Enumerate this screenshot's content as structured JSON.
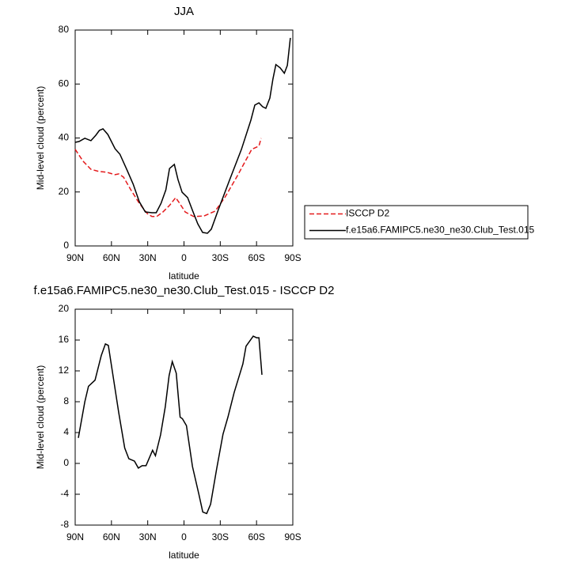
{
  "chart_data": [
    {
      "type": "line",
      "title": "JJA",
      "xlabel": "latitude",
      "ylabel": "Mid-level cloud (percent)",
      "xlim": [
        90,
        -90
      ],
      "ylim": [
        0,
        80
      ],
      "xticks": [
        {
          "value": 90,
          "label": "90N"
        },
        {
          "value": 60,
          "label": "60N"
        },
        {
          "value": 30,
          "label": "30N"
        },
        0,
        {
          "value": -30,
          "label": "30S"
        },
        {
          "value": -60,
          "label": "60S"
        },
        {
          "value": -90,
          "label": "90S"
        }
      ],
      "yticks": [
        0,
        20,
        40,
        60,
        80
      ],
      "legend": "right",
      "series": [
        {
          "name": "ISCCP D2",
          "color": "#e41a1c",
          "dash": true,
          "x": [
            90,
            83.5,
            77,
            70.5,
            64,
            57,
            54,
            50,
            44,
            37,
            30.4,
            26.5,
            22.6,
            17.4,
            12,
            6.9,
            3.6,
            -1,
            -8,
            -16.5,
            -25.7,
            -33.7,
            -44.2,
            -50.7,
            -56,
            -62,
            -63.8
          ],
          "values": [
            35.8,
            31.4,
            28.4,
            27.6,
            27.3,
            26.4,
            26.7,
            25.5,
            20.8,
            15.8,
            12,
            10.9,
            10.9,
            12.6,
            15,
            17.9,
            15.8,
            12.6,
            10.9,
            11.1,
            12.9,
            17.9,
            26,
            31.4,
            35.8,
            37,
            39.9
          ]
        },
        {
          "name": "f.e15a6.FAMIPC5.ne30_ne30.Club_Test.015",
          "color": "#000000",
          "dash": false,
          "x": [
            90,
            86.7,
            82,
            77,
            73,
            70,
            67,
            63,
            57,
            53,
            47,
            42,
            37,
            32,
            26.5,
            23,
            19,
            15,
            12,
            8,
            5,
            1.6,
            -3,
            -7,
            -11.4,
            -15.4,
            -19.4,
            -22.6,
            -28.5,
            -37.6,
            -47.5,
            -55.3,
            -58.6,
            -62,
            -65,
            -67.7,
            -71,
            -73.6,
            -76,
            -79.5,
            -83,
            -85.5,
            -88
          ],
          "values": [
            38.4,
            38.7,
            39.9,
            39,
            41,
            42.8,
            43.4,
            41.3,
            36,
            34,
            28,
            22.9,
            16.4,
            12.6,
            12.3,
            12.3,
            15.8,
            20.8,
            28.7,
            30.2,
            24.6,
            19.9,
            17.9,
            13.2,
            8.2,
            5,
            4.7,
            6.2,
            13.5,
            24.3,
            35.8,
            46.6,
            52.2,
            53,
            51.6,
            51,
            54.8,
            61.9,
            67.2,
            66,
            64,
            66.9,
            77.1
          ]
        }
      ]
    },
    {
      "type": "line",
      "title": "f.e15a6.FAMIPC5.ne30_ne30.Club_Test.015 - ISCCP D2",
      "xlabel": "latitude",
      "ylabel": "Mid-level cloud (percent)",
      "xlim": [
        90,
        -90
      ],
      "ylim": [
        -8,
        20
      ],
      "xticks": [
        {
          "value": 90,
          "label": "90N"
        },
        {
          "value": 60,
          "label": "60N"
        },
        {
          "value": 30,
          "label": "30N"
        },
        0,
        {
          "value": -30,
          "label": "30S"
        },
        {
          "value": -60,
          "label": "60S"
        },
        {
          "value": -90,
          "label": "90S"
        }
      ],
      "yticks": [
        -8,
        -4,
        0,
        4,
        8,
        12,
        16,
        20
      ],
      "series": [
        {
          "color": "#000000",
          "dash": false,
          "x": [
            87.4,
            82,
            79,
            73.6,
            68.4,
            65,
            62.6,
            54,
            49,
            45.6,
            41,
            37.8,
            34.6,
            31.4,
            26,
            23.6,
            19.4,
            15.5,
            12.3,
            9.7,
            6.4,
            3.2,
            1.3,
            -2,
            -7,
            -12.3,
            -15.5,
            -18.8,
            -22,
            -27,
            -32.3,
            -36.3,
            -41.5,
            -48.7,
            -51.3,
            -57.3,
            -60,
            -62,
            -64.5
          ],
          "values": [
            3.3,
            8,
            10,
            10.8,
            14,
            15.5,
            15.3,
            6.6,
            2,
            0.6,
            0.3,
            -0.6,
            -0.3,
            -0.3,
            1.7,
            1,
            3.7,
            7.3,
            11.4,
            13.2,
            11.7,
            6,
            5.8,
            4.9,
            -0.4,
            -4,
            -6.3,
            -6.5,
            -5.3,
            -0.7,
            3.8,
            6,
            9.2,
            12.9,
            15.2,
            16.5,
            16.3,
            16.3,
            11.5
          ]
        }
      ]
    }
  ]
}
